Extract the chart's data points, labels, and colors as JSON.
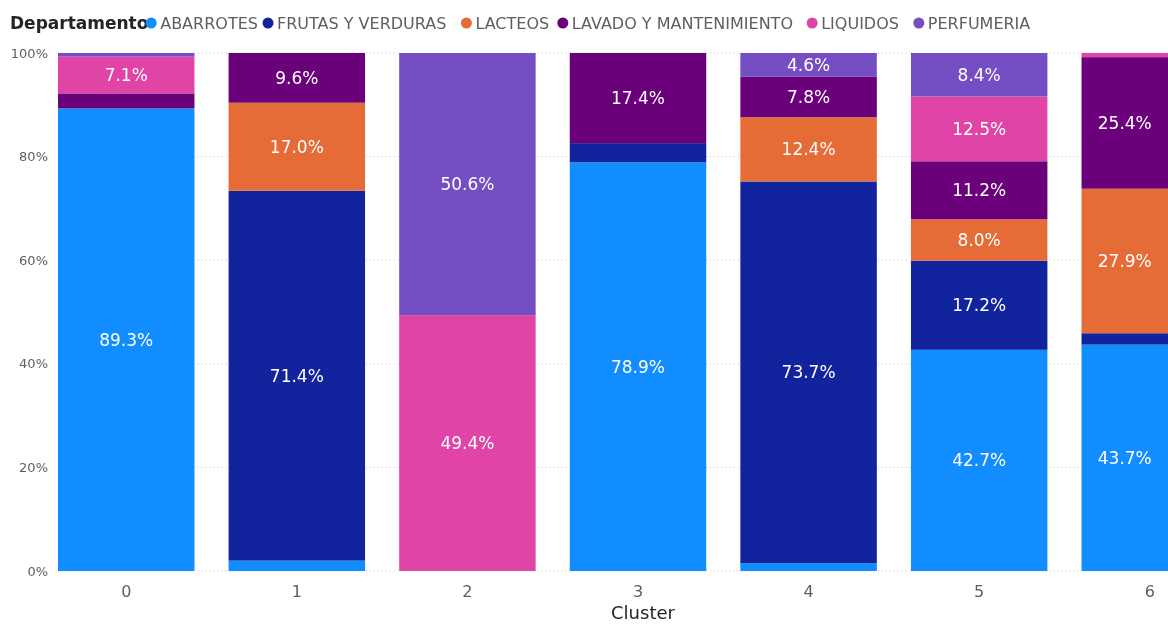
{
  "chart_data": {
    "type": "bar",
    "stacked": true,
    "legend_title": "Departamento",
    "legend": "top left",
    "xlabel": "Cluster",
    "categories": [
      "0",
      "1",
      "2",
      "3",
      "4",
      "5",
      "6"
    ],
    "ylim": [
      0,
      100
    ],
    "yticks": [
      {
        "value": 0,
        "label": "0%"
      },
      {
        "value": 20,
        "label": "20%"
      },
      {
        "value": 40,
        "label": "40%"
      },
      {
        "value": 60,
        "label": "60%"
      },
      {
        "value": 80,
        "label": "80%"
      },
      {
        "value": 100,
        "label": "100%"
      }
    ],
    "grid": "y",
    "series": [
      {
        "name": "ABARROTES",
        "color": "#118dff",
        "values": [
          89.3,
          2.0,
          0,
          78.9,
          1.5,
          42.7,
          43.7
        ],
        "value_labels": [
          "89.3%",
          null,
          null,
          "78.9%",
          null,
          "42.7%",
          "43.7%"
        ]
      },
      {
        "name": "FRUTAS Y VERDURAS",
        "color": "#12239e",
        "values": [
          0,
          71.4,
          0,
          3.7,
          73.7,
          17.2,
          2.2
        ],
        "value_labels": [
          null,
          "71.4%",
          null,
          null,
          "73.7%",
          "17.2%",
          null
        ]
      },
      {
        "name": "LACTEOS",
        "color": "#e66c37",
        "values": [
          0,
          17.0,
          0,
          0,
          12.4,
          8.0,
          27.9
        ],
        "value_labels": [
          null,
          "17.0%",
          null,
          null,
          "12.4%",
          "8.0%",
          "27.9%"
        ]
      },
      {
        "name": "LAVADO Y MANTENIMIENTO",
        "color": "#6b007b",
        "values": [
          2.9,
          9.6,
          0,
          17.4,
          7.8,
          11.2,
          25.4
        ],
        "value_labels": [
          null,
          "9.6%",
          null,
          "17.4%",
          "7.8%",
          "11.2%",
          "25.4%"
        ]
      },
      {
        "name": "LIQUIDOS",
        "color": "#e044a7",
        "values": [
          7.1,
          0,
          49.4,
          0,
          0,
          12.5,
          0.8
        ],
        "value_labels": [
          "7.1%",
          null,
          "49.4%",
          null,
          null,
          "12.5%",
          null
        ]
      },
      {
        "name": "PERFUMERIA",
        "color": "#744ec2",
        "values": [
          0.7,
          0,
          50.6,
          0,
          4.6,
          8.4,
          0
        ],
        "value_labels": [
          null,
          null,
          "50.6%",
          null,
          "4.6%",
          "8.4%",
          null
        ]
      }
    ]
  }
}
